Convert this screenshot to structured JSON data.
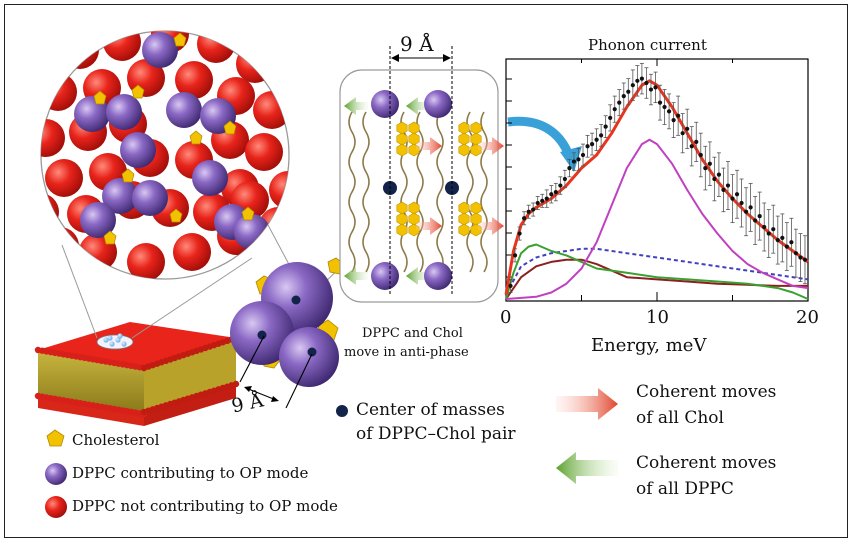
{
  "figure": {
    "spacing_top": "9 Å",
    "spacing_bottom": "9 Å",
    "antiphase_caption_line1": "DPPC and Chol",
    "antiphase_caption_line2": "move in anti-phase"
  },
  "legend": {
    "cholesterol": "Cholesterol",
    "dppc_op": "DPPC contributing to OP mode",
    "dppc_not_op": "DPPC not contributing to OP mode",
    "center_line1": "Center of masses",
    "center_line2": "of DPPC–Chol pair",
    "chol_moves_line1": "Coherent moves",
    "chol_moves_line2": "of all Chol",
    "dppc_moves_line1": "Coherent moves",
    "dppc_moves_line2": "of all DPPC"
  },
  "colors": {
    "dppc_not_op": "#e8241b",
    "dppc_op": "#7a58b5",
    "cholesterol": "#f2c200",
    "chol_arrow": "#e0442c",
    "dppc_arrow": "#5aa02c",
    "fit_total": "#e8351d",
    "fit_op": "#c040c0",
    "fit_dashed": "#4040c0",
    "fit_green": "#3aa030",
    "fit_brown": "#8b2020",
    "callout_arrow": "#3aa0d8"
  },
  "chart_data": {
    "type": "scatter",
    "title": "Phonon current",
    "xlabel": "Energy, meV",
    "ylabel": "",
    "xlim": [
      0,
      20
    ],
    "ylim": [
      0,
      1.1
    ],
    "x_ticks": [
      "0",
      "10",
      "20"
    ],
    "points": {
      "x": [
        0.3,
        0.6,
        0.9,
        1.2,
        1.5,
        1.8,
        2.1,
        2.4,
        2.7,
        3.0,
        3.3,
        3.6,
        3.9,
        4.2,
        4.5,
        4.8,
        5.1,
        5.4,
        5.7,
        6.0,
        6.3,
        6.6,
        6.9,
        7.2,
        7.5,
        7.8,
        8.1,
        8.4,
        8.7,
        9.0,
        9.3,
        9.6,
        9.9,
        10.2,
        10.5,
        10.8,
        11.1,
        11.4,
        11.7,
        12.0,
        12.3,
        12.6,
        12.9,
        13.2,
        13.5,
        13.8,
        14.1,
        14.4,
        14.7,
        15.0,
        15.3,
        15.6,
        15.9,
        16.2,
        16.5,
        16.8,
        17.1,
        17.4,
        17.7,
        18.0,
        18.3,
        18.6,
        18.9,
        19.2,
        19.5,
        19.8
      ],
      "y": [
        0.06,
        0.2,
        0.3,
        0.37,
        0.4,
        0.41,
        0.44,
        0.45,
        0.46,
        0.48,
        0.49,
        0.52,
        0.55,
        0.6,
        0.63,
        0.64,
        0.66,
        0.7,
        0.71,
        0.73,
        0.75,
        0.79,
        0.83,
        0.87,
        0.9,
        0.93,
        0.95,
        0.98,
        1.0,
        1.01,
        0.99,
        0.96,
        0.97,
        0.9,
        0.88,
        0.86,
        0.82,
        0.84,
        0.76,
        0.78,
        0.7,
        0.72,
        0.66,
        0.6,
        0.62,
        0.55,
        0.57,
        0.5,
        0.52,
        0.46,
        0.48,
        0.44,
        0.4,
        0.42,
        0.36,
        0.38,
        0.33,
        0.3,
        0.32,
        0.27,
        0.28,
        0.24,
        0.26,
        0.21,
        0.19,
        0.18
      ],
      "err": [
        0.03,
        0.03,
        0.03,
        0.03,
        0.03,
        0.03,
        0.03,
        0.03,
        0.04,
        0.04,
        0.04,
        0.04,
        0.04,
        0.04,
        0.04,
        0.05,
        0.05,
        0.05,
        0.05,
        0.05,
        0.05,
        0.05,
        0.06,
        0.06,
        0.06,
        0.06,
        0.06,
        0.07,
        0.07,
        0.07,
        0.07,
        0.07,
        0.07,
        0.08,
        0.08,
        0.08,
        0.08,
        0.09,
        0.09,
        0.09,
        0.09,
        0.09,
        0.1,
        0.1,
        0.1,
        0.1,
        0.1,
        0.1,
        0.11,
        0.11,
        0.11,
        0.11,
        0.11,
        0.11,
        0.11,
        0.11,
        0.11,
        0.11,
        0.11,
        0.11,
        0.11,
        0.11,
        0.11,
        0.11,
        0.11,
        0.11
      ]
    },
    "series": [
      {
        "name": "total fit",
        "x": [
          0,
          0.5,
          1,
          1.5,
          2,
          3,
          4,
          5,
          6,
          7,
          8,
          9,
          9.5,
          10,
          11,
          12,
          13,
          14,
          15,
          16,
          17,
          18,
          19,
          20
        ],
        "y": [
          0.02,
          0.22,
          0.34,
          0.39,
          0.42,
          0.46,
          0.52,
          0.6,
          0.66,
          0.76,
          0.88,
          0.98,
          1.0,
          0.98,
          0.88,
          0.76,
          0.64,
          0.54,
          0.46,
          0.39,
          0.33,
          0.27,
          0.22,
          0.17
        ]
      },
      {
        "name": "OP mode",
        "x": [
          0,
          2,
          3,
          4,
          5,
          6,
          7,
          8,
          9,
          9.5,
          10,
          11,
          12,
          13,
          14,
          15,
          16,
          17,
          18,
          19,
          20
        ],
        "y": [
          0,
          0.01,
          0.03,
          0.07,
          0.14,
          0.26,
          0.43,
          0.6,
          0.71,
          0.73,
          0.71,
          0.62,
          0.5,
          0.39,
          0.3,
          0.22,
          0.16,
          0.12,
          0.09,
          0.06,
          0.05
        ]
      },
      {
        "name": "broad dashed",
        "x": [
          0,
          1,
          2,
          3,
          4,
          5,
          6,
          7,
          8,
          10,
          12,
          14,
          16,
          18,
          20
        ],
        "y": [
          0.02,
          0.15,
          0.19,
          0.21,
          0.22,
          0.23,
          0.23,
          0.22,
          0.21,
          0.19,
          0.17,
          0.15,
          0.13,
          0.11,
          0.09
        ]
      },
      {
        "name": "green",
        "x": [
          0,
          0.5,
          1,
          1.5,
          2,
          3,
          4,
          5,
          6,
          8,
          10,
          12,
          14,
          16,
          18,
          19,
          20
        ],
        "y": [
          0.0,
          0.12,
          0.21,
          0.24,
          0.25,
          0.22,
          0.2,
          0.17,
          0.14,
          0.12,
          0.1,
          0.09,
          0.08,
          0.07,
          0.05,
          0.03,
          0.0
        ]
      },
      {
        "name": "brown",
        "x": [
          0,
          1,
          2,
          3,
          4,
          5,
          6,
          7,
          8,
          10,
          12,
          14,
          16,
          18,
          20
        ],
        "y": [
          0.0,
          0.1,
          0.15,
          0.17,
          0.18,
          0.18,
          0.16,
          0.13,
          0.1,
          0.09,
          0.08,
          0.07,
          0.065,
          0.06,
          0.06
        ]
      }
    ]
  }
}
